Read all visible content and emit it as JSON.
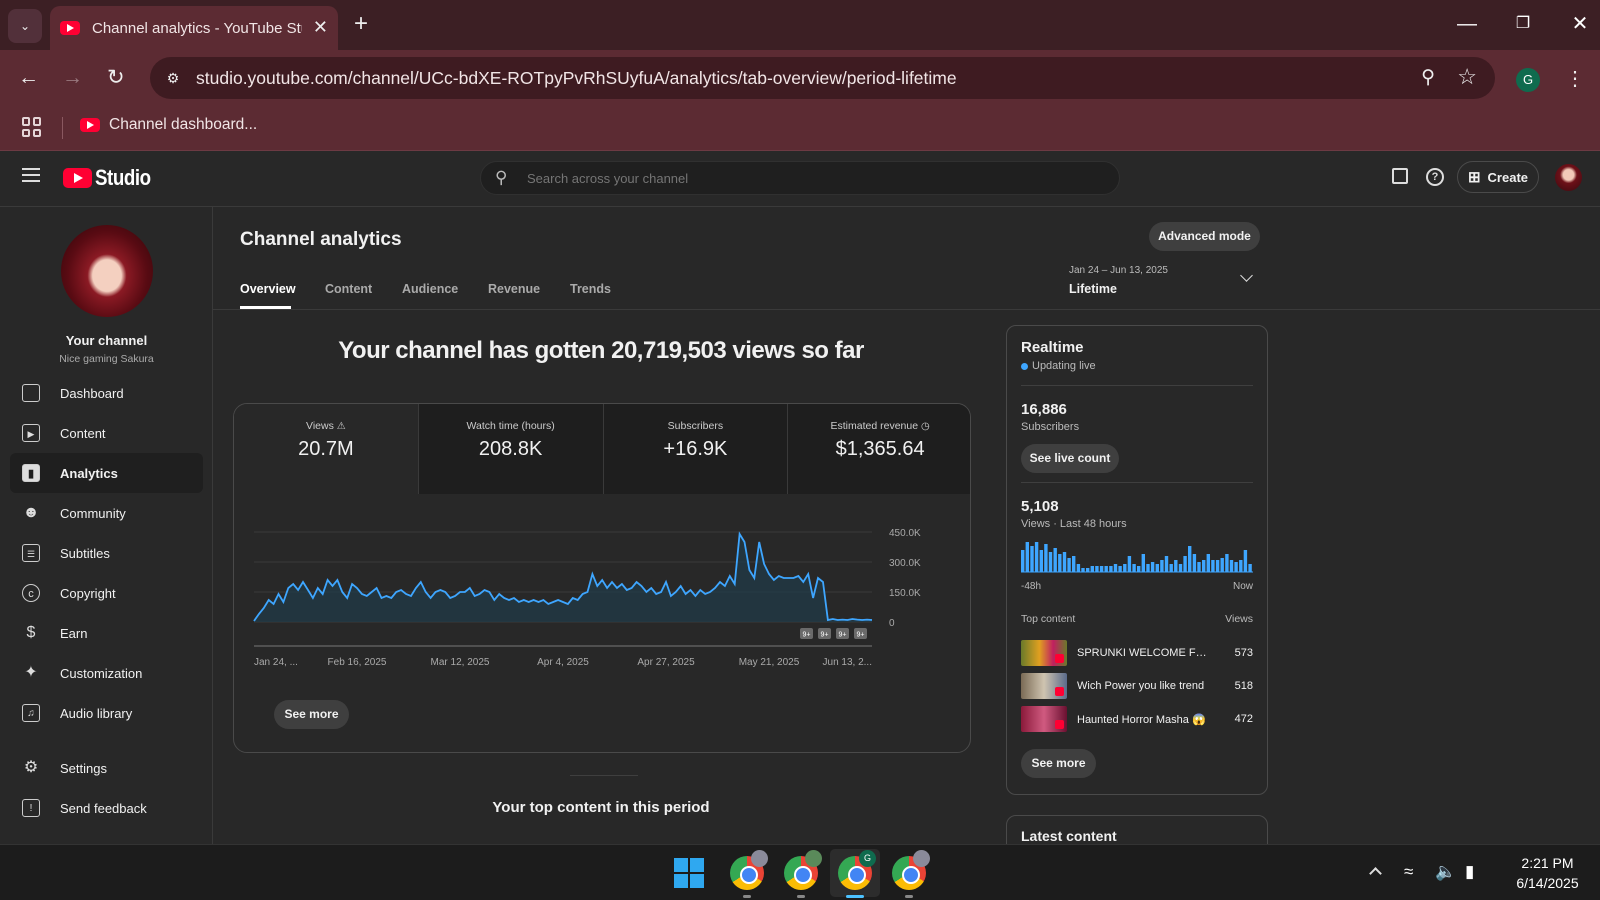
{
  "browser": {
    "tab_title": "Channel analytics - YouTube Studio",
    "url": "studio.youtube.com/channel/UCc-bdXE-ROTpyPvRhSUyfuA/analytics/tab-overview/period-lifetime",
    "bookmark_label": "Channel dashboard...",
    "profile_initial": "G"
  },
  "header": {
    "logo_text": "Studio",
    "search_placeholder": "Search across your channel",
    "create_label": "Create"
  },
  "sidebar": {
    "channel_title": "Your channel",
    "channel_handle": "Nice gaming Sakura",
    "items": [
      {
        "label": "Dashboard",
        "icon": "dashboard-icon"
      },
      {
        "label": "Content",
        "icon": "content-icon"
      },
      {
        "label": "Analytics",
        "icon": "analytics-icon",
        "active": true
      },
      {
        "label": "Community",
        "icon": "community-icon"
      },
      {
        "label": "Subtitles",
        "icon": "subtitles-icon"
      },
      {
        "label": "Copyright",
        "icon": "copyright-icon"
      },
      {
        "label": "Earn",
        "icon": "earn-icon"
      },
      {
        "label": "Customization",
        "icon": "customization-icon"
      },
      {
        "label": "Audio library",
        "icon": "audio-library-icon"
      },
      {
        "label": "Settings",
        "icon": "gear-icon"
      },
      {
        "label": "Send feedback",
        "icon": "feedback-icon"
      }
    ]
  },
  "main": {
    "title": "Channel analytics",
    "advanced_mode": "Advanced mode",
    "tabs": [
      "Overview",
      "Content",
      "Audience",
      "Revenue",
      "Trends"
    ],
    "date_range": "Jan 24 – Jun 13, 2025",
    "period": "Lifetime",
    "headline": "Your channel has gotten 20,719,503 views so far",
    "metrics": [
      {
        "label": "Views",
        "value": "20.7M",
        "icon": "warning-icon"
      },
      {
        "label": "Watch time (hours)",
        "value": "208.8K"
      },
      {
        "label": "Subscribers",
        "value": "+16.9K"
      },
      {
        "label": "Estimated revenue",
        "value": "$1,365.64",
        "icon": "clock-icon"
      }
    ],
    "see_more": "See more",
    "top_content_title": "Your top content in this period"
  },
  "chart_data": {
    "type": "area",
    "series_name": "Views",
    "x_labels": [
      "Jan 24, ...",
      "Feb 16, 2025",
      "Mar 12, 2025",
      "Apr 4, 2025",
      "Apr 27, 2025",
      "May 21, 2025",
      "Jun 13, 2..."
    ],
    "y_ticks": [
      "450.0K",
      "300.0K",
      "150.0K",
      "0"
    ],
    "ylim": [
      0,
      450000
    ],
    "values": [
      5000,
      40000,
      70000,
      110000,
      90000,
      140000,
      100000,
      170000,
      190000,
      160000,
      200000,
      160000,
      120000,
      170000,
      140000,
      210000,
      180000,
      210000,
      150000,
      120000,
      190000,
      170000,
      140000,
      130000,
      150000,
      170000,
      120000,
      130000,
      120000,
      150000,
      160000,
      140000,
      130000,
      170000,
      200000,
      150000,
      120000,
      150000,
      160000,
      150000,
      120000,
      130000,
      150000,
      150000,
      170000,
      130000,
      140000,
      160000,
      150000,
      110000,
      140000,
      120000,
      110000,
      120000,
      100000,
      110000,
      100000,
      110000,
      100000,
      110000,
      90000,
      100000,
      110000,
      100000,
      90000,
      120000,
      110000,
      140000,
      150000,
      240000,
      180000,
      210000,
      170000,
      200000,
      170000,
      190000,
      160000,
      170000,
      200000,
      180000,
      150000,
      170000,
      140000,
      150000,
      200000,
      130000,
      150000,
      180000,
      140000,
      160000,
      130000,
      160000,
      140000,
      150000,
      170000,
      200000,
      180000,
      230000,
      190000,
      440000,
      400000,
      260000,
      220000,
      400000,
      290000,
      240000,
      210000,
      230000,
      220000,
      220000,
      220000,
      230000,
      200000,
      240000,
      120000,
      220000,
      200000,
      10000,
      15000,
      10000,
      12000,
      10000,
      15000,
      12000,
      10000,
      12000,
      10000
    ],
    "annotation_badges": [
      "9+",
      "9+",
      "9+",
      "9+"
    ]
  },
  "realtime": {
    "title": "Realtime",
    "status": "Updating live",
    "subscribers": "16,886",
    "subscribers_label": "Subscribers",
    "live_count_button": "See live count",
    "views": "5,108",
    "views_label": "Views · Last 48 hours",
    "bar_values": [
      110,
      150,
      130,
      150,
      110,
      140,
      100,
      120,
      90,
      100,
      70,
      80,
      40,
      20,
      20,
      30,
      30,
      30,
      30,
      30,
      40,
      30,
      40,
      80,
      40,
      30,
      90,
      40,
      50,
      40,
      60,
      80,
      40,
      60,
      40,
      80,
      130,
      90,
      50,
      60,
      90,
      60,
      60,
      70,
      90,
      60,
      50,
      60,
      110,
      40
    ],
    "axis_start": "-48h",
    "axis_end": "Now",
    "top_content_label": "Top content",
    "top_views_label": "Views",
    "top_items": [
      {
        "title": "SPRUNKI WELCOME FRIENDS",
        "views": "573"
      },
      {
        "title": "Wich Power you like trend",
        "views": "518"
      },
      {
        "title": "Haunted Horror Masha 😱",
        "views": "472"
      }
    ],
    "see_more": "See more",
    "latest_title": "Latest content"
  },
  "taskbar": {
    "time": "2:21 PM",
    "date": "6/14/2025",
    "active_badge": "G"
  }
}
